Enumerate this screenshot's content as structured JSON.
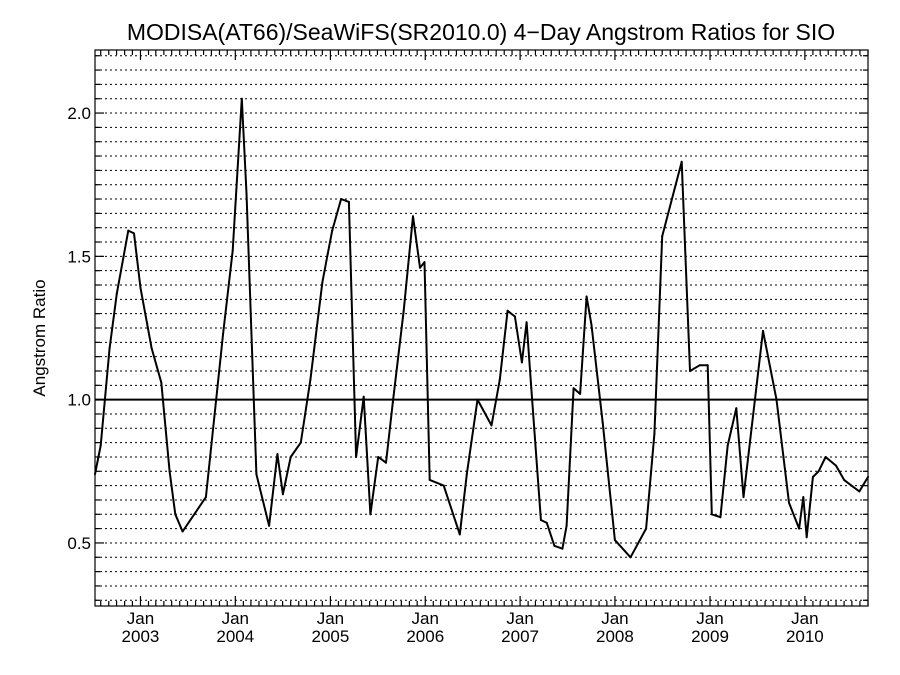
{
  "chart_data": {
    "type": "line",
    "title": "MODISA(AT66)/SeaWiFS(SR2010.0) 4−Day Angstrom Ratios for SIO",
    "xlabel": "",
    "ylabel": "Angstrom Ratio",
    "xlim": [
      "2002-07-10",
      "2010-09-01"
    ],
    "ylim": [
      0.28,
      2.22
    ],
    "yticks": [
      0.5,
      1.0,
      1.5,
      2.0
    ],
    "ytick_labels": [
      "0.5",
      "1.0",
      "1.5",
      "2.0"
    ],
    "xticks": [
      {
        "date": "2003-01-01",
        "month": "Jan",
        "year": "2003"
      },
      {
        "date": "2004-01-01",
        "month": "Jan",
        "year": "2004"
      },
      {
        "date": "2005-01-01",
        "month": "Jan",
        "year": "2005"
      },
      {
        "date": "2006-01-01",
        "month": "Jan",
        "year": "2006"
      },
      {
        "date": "2007-01-01",
        "month": "Jan",
        "year": "2007"
      },
      {
        "date": "2008-01-01",
        "month": "Jan",
        "year": "2008"
      },
      {
        "date": "2009-01-01",
        "month": "Jan",
        "year": "2009"
      },
      {
        "date": "2010-01-01",
        "month": "Jan",
        "year": "2010"
      }
    ],
    "grid": true,
    "reference_line": 1.0,
    "line_color": "#000000",
    "series": [
      {
        "x": [
          "2002-07-10",
          "2002-08-01",
          "2002-09-04",
          "2002-10-02",
          "2002-11-15",
          "2002-12-07",
          "2003-01-01",
          "2003-02-13",
          "2003-03-22",
          "2003-04-23",
          "2003-05-15",
          "2003-06-12",
          "2003-09-10",
          "2003-11-15",
          "2003-12-22",
          "2004-01-26",
          "2004-02-13",
          "2004-03-22",
          "2004-05-10",
          "2004-06-11",
          "2004-07-02",
          "2004-08-01",
          "2004-09-09",
          "2004-10-16",
          "2004-12-01",
          "2004-12-22",
          "2005-01-08",
          "2005-02-11",
          "2005-03-13",
          "2005-04-10",
          "2005-05-09",
          "2005-06-04",
          "2005-07-04",
          "2005-08-03",
          "2005-08-29",
          "2005-10-10",
          "2005-11-15",
          "2005-12-12",
          "2005-12-29",
          "2006-01-18",
          "2006-03-13",
          "2006-05-14",
          "2006-06-10",
          "2006-07-21",
          "2006-09-13",
          "2006-10-15",
          "2006-11-14",
          "2006-12-12",
          "2007-01-08",
          "2007-01-26",
          "2007-02-13",
          "2007-03-22",
          "2007-04-14",
          "2007-05-13",
          "2007-06-13",
          "2007-06-29",
          "2007-07-26",
          "2007-08-20",
          "2007-09-14",
          "2007-10-03",
          "2007-11-15",
          "2008-01-01",
          "2008-03-01",
          "2008-04-30",
          "2008-06-01",
          "2008-07-01",
          "2008-09-14",
          "2008-10-16",
          "2008-11-22",
          "2008-12-23",
          "2009-01-08",
          "2009-02-10",
          "2009-03-10",
          "2009-04-12",
          "2009-05-10",
          "2009-07-24",
          "2009-09-14",
          "2009-11-01",
          "2009-12-10",
          "2009-12-26",
          "2010-01-08",
          "2010-02-01",
          "2010-02-23",
          "2010-03-22",
          "2010-05-01",
          "2010-06-01",
          "2010-06-29",
          "2010-07-30",
          "2010-09-01"
        ],
        "y": [
          0.74,
          0.84,
          1.18,
          1.37,
          1.59,
          1.58,
          1.39,
          1.18,
          1.06,
          0.75,
          0.6,
          0.54,
          0.66,
          1.23,
          1.52,
          2.05,
          1.72,
          0.74,
          0.56,
          0.81,
          0.67,
          0.8,
          0.85,
          1.07,
          1.41,
          1.51,
          1.59,
          1.7,
          1.69,
          0.8,
          1.01,
          0.6,
          0.8,
          0.78,
          0.99,
          1.31,
          1.64,
          1.46,
          1.48,
          0.72,
          0.7,
          0.53,
          0.74,
          1.0,
          0.91,
          1.07,
          1.31,
          1.29,
          1.13,
          1.27,
          1.04,
          0.58,
          0.57,
          0.49,
          0.48,
          0.56,
          1.04,
          1.02,
          1.36,
          1.26,
          0.92,
          0.51,
          0.45,
          0.55,
          0.88,
          1.57,
          1.83,
          1.1,
          1.12,
          1.12,
          0.6,
          0.59,
          0.84,
          0.97,
          0.66,
          1.24,
          1.0,
          0.64,
          0.55,
          0.66,
          0.52,
          0.73,
          0.75,
          0.8,
          0.77,
          0.72,
          0.7,
          0.68,
          0.73
        ]
      }
    ]
  }
}
